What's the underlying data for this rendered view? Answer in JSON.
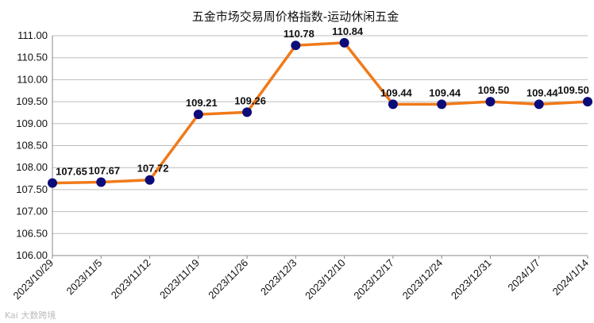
{
  "chart_data": {
    "type": "line",
    "title": "五金市场交易周价格指数-运动休闲五金",
    "categories": [
      "2023/10/29",
      "2023/11/5",
      "2023/11/12",
      "2023/11/19",
      "2023/11/26",
      "2023/12/3",
      "2023/12/10",
      "2023/12/17",
      "2023/12/24",
      "2023/12/31",
      "2024/1/7",
      "2024/1/14"
    ],
    "series": [
      {
        "values": [
          107.65,
          107.67,
          107.72,
          109.21,
          109.26,
          110.78,
          110.84,
          109.44,
          109.44,
          109.5,
          109.44,
          109.5
        ]
      }
    ],
    "data_labels": [
      "107.65",
      "107.67",
      "107.72",
      "109.21",
      "109.26",
      "110.78",
      "110.84",
      "109.44",
      "109.44",
      "109.50",
      "109.44",
      "109.50"
    ],
    "ylim": [
      106.0,
      111.0
    ],
    "yticks": [
      "106.00",
      "106.50",
      "107.00",
      "107.50",
      "108.00",
      "108.50",
      "109.00",
      "109.50",
      "110.00",
      "110.50",
      "111.00"
    ],
    "grid": "horizontal",
    "line_color": "#F07A1A",
    "marker_color": "#0B0B7A"
  },
  "watermark": "Kai 大数跨境"
}
